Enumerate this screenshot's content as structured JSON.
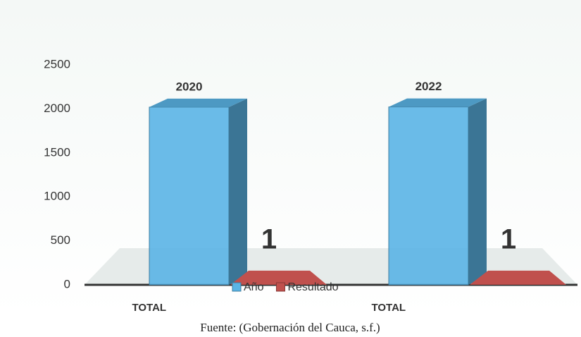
{
  "chart_data": {
    "type": "bar3d",
    "categories": [
      "TOTAL",
      "TOTAL"
    ],
    "series": [
      {
        "name": "Año",
        "color": "#5ab4e5",
        "values": [
          2020,
          2022
        ]
      },
      {
        "name": "Resultado",
        "color": "#c0504d",
        "values": [
          1,
          1
        ]
      }
    ],
    "ylim": [
      0,
      2500
    ],
    "yticks": [
      0,
      500,
      1000,
      1500,
      2000,
      2500
    ],
    "legend": "bottom",
    "caption": "Fuente: (Gobernación del Cauca, s.f.)"
  }
}
